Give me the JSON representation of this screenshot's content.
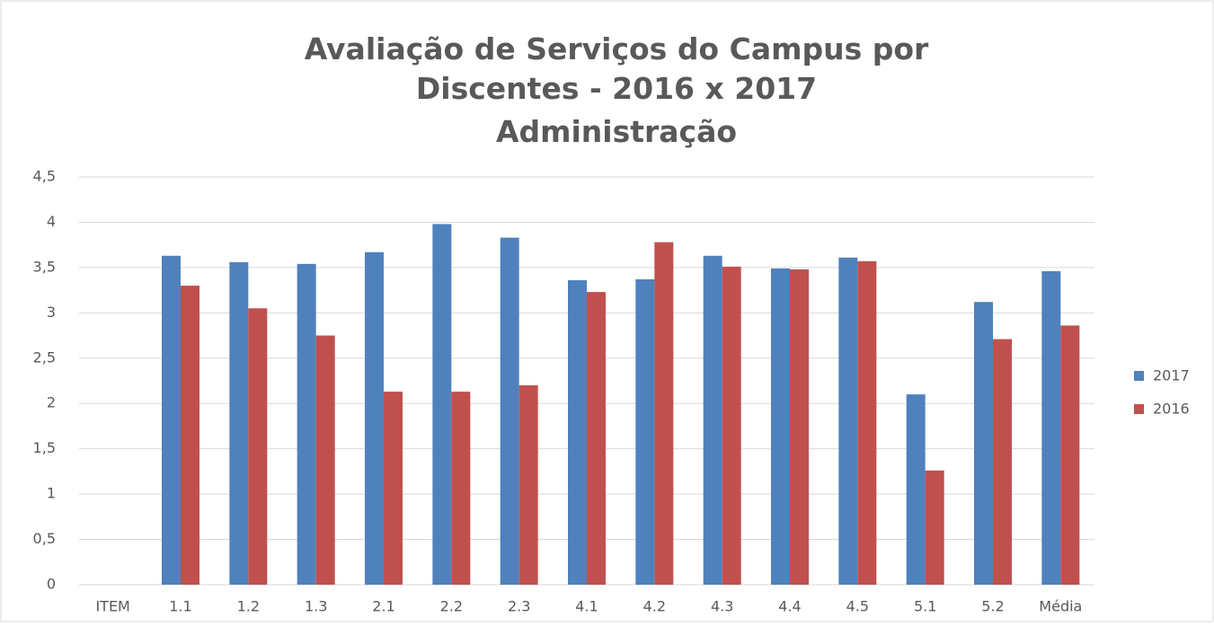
{
  "chart_data": {
    "type": "bar",
    "title": [
      "Avaliação de Serviços do Campus por",
      "Discentes - 2016 x 2017",
      "Administração"
    ],
    "categories": [
      "ITEM",
      "1.1",
      "1.2",
      "1.3",
      "2.1",
      "2.2",
      "2.3",
      "4.1",
      "4.2",
      "4.3",
      "4.4",
      "4.5",
      "5.1",
      "5.2",
      "Média"
    ],
    "series": [
      {
        "name": "2017",
        "color": "#4f81bd",
        "values": [
          null,
          3.63,
          3.56,
          3.54,
          3.67,
          3.98,
          3.83,
          3.36,
          3.37,
          3.63,
          3.49,
          3.61,
          2.1,
          3.12,
          3.46
        ]
      },
      {
        "name": "2016",
        "color": "#c0504d",
        "values": [
          null,
          3.3,
          3.05,
          2.75,
          2.13,
          2.13,
          2.2,
          3.23,
          3.78,
          3.51,
          3.48,
          3.57,
          1.26,
          2.71,
          2.86
        ]
      }
    ],
    "ylim": [
      0,
      4.5
    ],
    "yticks": [
      0,
      {
        "value": 0.5,
        "label": "0,5"
      },
      1,
      {
        "value": 1.5,
        "label": "1,5"
      },
      2,
      {
        "value": 2.5,
        "label": "2,5"
      },
      3,
      {
        "value": 3.5,
        "label": "3,5"
      },
      4,
      {
        "value": 4.5,
        "label": "4,5"
      }
    ],
    "grid": true,
    "legend": "right"
  }
}
